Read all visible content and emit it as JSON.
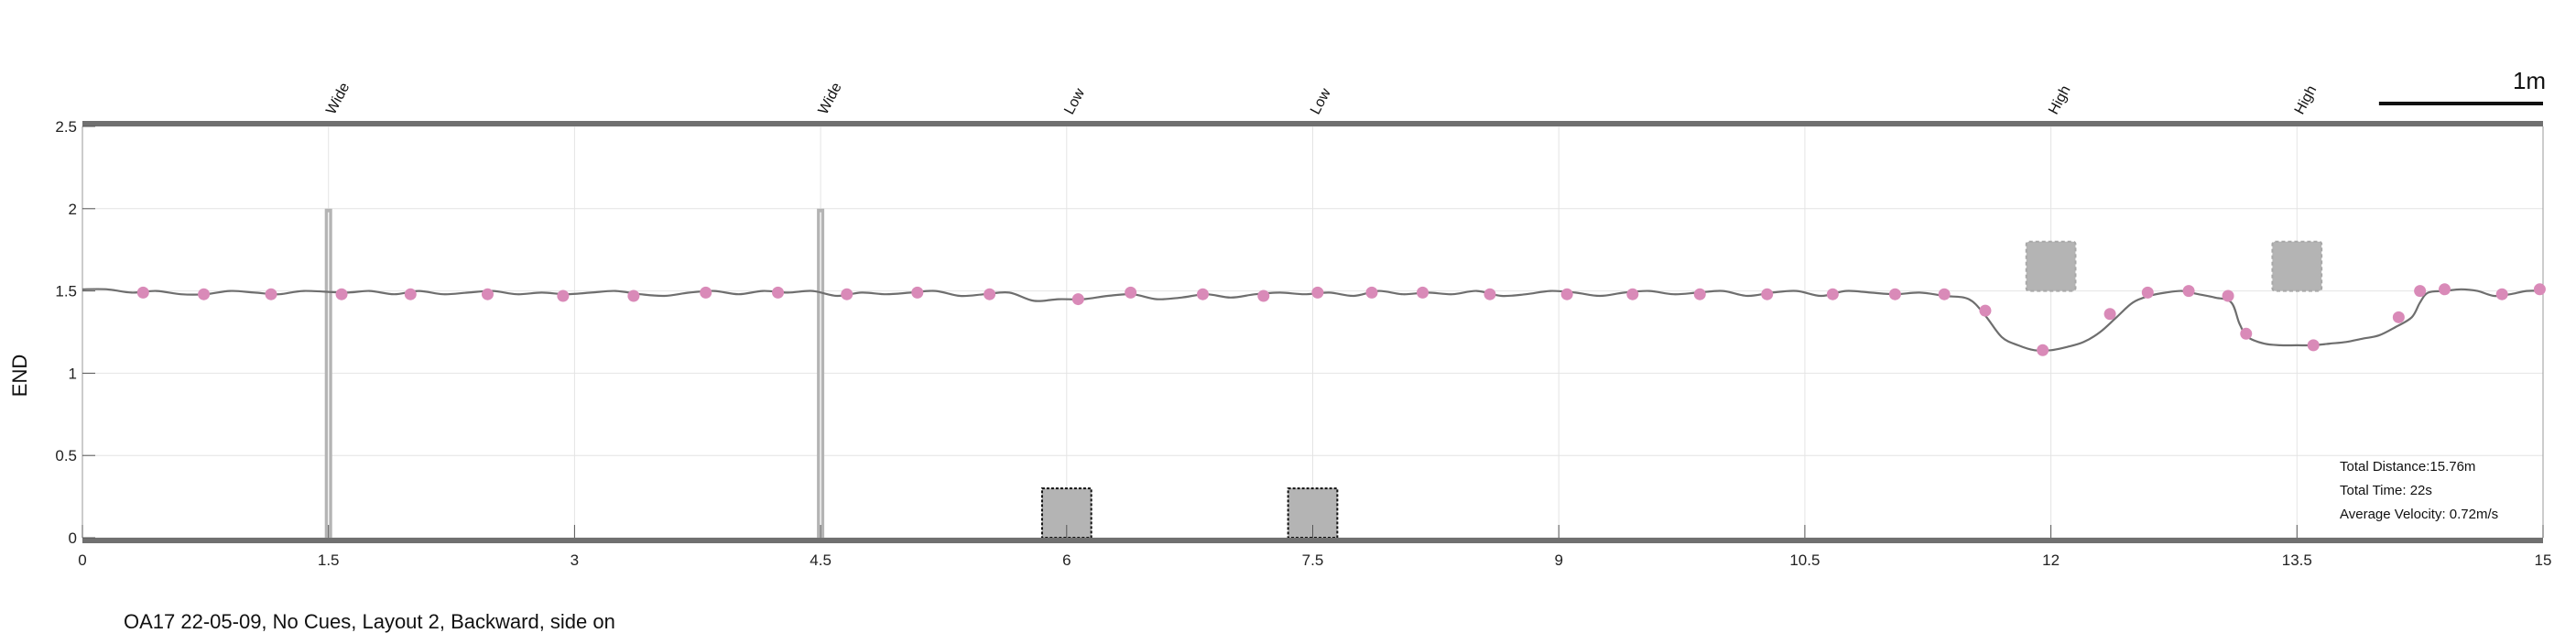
{
  "chart_data": {
    "type": "line",
    "ylabel": "END",
    "xlim": [
      0,
      15
    ],
    "ylim": [
      0,
      2.5
    ],
    "x_ticks": [
      "0",
      "1.5",
      "3",
      "4.5",
      "6",
      "7.5",
      "9",
      "10.5",
      "12",
      "13.5",
      "15"
    ],
    "x_tick_values": [
      0,
      1.5,
      3,
      4.5,
      6,
      7.5,
      9,
      10.5,
      12,
      13.5,
      15
    ],
    "y_ticks": [
      "0",
      "0.5",
      "1",
      "1.5",
      "2",
      "2.5"
    ],
    "y_tick_values": [
      0,
      0.5,
      1,
      1.5,
      2,
      2.5
    ],
    "grid": true,
    "scale_bar": {
      "label": "1m",
      "length": 1
    },
    "obstacles": [
      {
        "label": "Wide",
        "type": "post",
        "x": 1.5,
        "y_from": 0,
        "y_to": 2
      },
      {
        "label": "Wide",
        "type": "post",
        "x": 4.5,
        "y_from": 0,
        "y_to": 2
      },
      {
        "label": "Low",
        "type": "box",
        "x_from": 5.85,
        "x_to": 6.15,
        "y_from": 0,
        "y_to": 0.3
      },
      {
        "label": "Low",
        "type": "box",
        "x_from": 7.35,
        "x_to": 7.65,
        "y_from": 0,
        "y_to": 0.3
      },
      {
        "label": "High",
        "type": "block",
        "x_from": 11.85,
        "x_to": 12.15,
        "y_from": 1.5,
        "y_to": 1.8
      },
      {
        "label": "High",
        "type": "block",
        "x_from": 13.35,
        "x_to": 13.65,
        "y_from": 1.5,
        "y_to": 1.8
      }
    ],
    "series": [
      {
        "name": "trajectory",
        "x": [
          0,
          0.15,
          0.3,
          0.45,
          0.6,
          0.75,
          0.9,
          1.05,
          1.2,
          1.35,
          1.6,
          1.75,
          1.9,
          2.05,
          2.2,
          2.35,
          2.5,
          2.65,
          2.8,
          2.95,
          3.1,
          3.25,
          3.4,
          3.55,
          3.7,
          3.85,
          4.0,
          4.15,
          4.3,
          4.45,
          4.6,
          4.75,
          4.9,
          5.05,
          5.2,
          5.35,
          5.5,
          5.65,
          5.8,
          5.95,
          6.1,
          6.25,
          6.4,
          6.55,
          6.7,
          6.85,
          7.0,
          7.15,
          7.3,
          7.45,
          7.6,
          7.75,
          7.9,
          8.05,
          8.2,
          8.35,
          8.5,
          8.65,
          8.8,
          8.95,
          9.1,
          9.25,
          9.4,
          9.55,
          9.7,
          9.85,
          10.0,
          10.15,
          10.3,
          10.45,
          10.6,
          10.75,
          10.9,
          11.05,
          11.2,
          11.35,
          11.5,
          11.6,
          11.7,
          11.8,
          11.9,
          12.0,
          12.1,
          12.2,
          12.3,
          12.4,
          12.5,
          12.6,
          12.7,
          12.8,
          12.9,
          13.0,
          13.1,
          13.15,
          13.2,
          13.3,
          13.4,
          13.5,
          13.6,
          13.7,
          13.8,
          13.9,
          14.0,
          14.1,
          14.2,
          14.25,
          14.3,
          14.4,
          14.5,
          14.6,
          14.7,
          14.8,
          14.9,
          15.0
        ],
        "y": [
          1.51,
          1.51,
          1.49,
          1.5,
          1.48,
          1.48,
          1.5,
          1.49,
          1.48,
          1.5,
          1.49,
          1.5,
          1.48,
          1.5,
          1.48,
          1.49,
          1.5,
          1.48,
          1.49,
          1.48,
          1.49,
          1.5,
          1.48,
          1.47,
          1.49,
          1.5,
          1.48,
          1.5,
          1.49,
          1.5,
          1.47,
          1.49,
          1.48,
          1.49,
          1.5,
          1.47,
          1.48,
          1.49,
          1.44,
          1.45,
          1.45,
          1.47,
          1.48,
          1.45,
          1.46,
          1.48,
          1.46,
          1.48,
          1.49,
          1.48,
          1.49,
          1.47,
          1.5,
          1.48,
          1.49,
          1.48,
          1.5,
          1.47,
          1.48,
          1.5,
          1.49,
          1.47,
          1.49,
          1.5,
          1.48,
          1.49,
          1.5,
          1.47,
          1.49,
          1.5,
          1.47,
          1.5,
          1.49,
          1.48,
          1.49,
          1.47,
          1.45,
          1.35,
          1.22,
          1.17,
          1.14,
          1.14,
          1.16,
          1.19,
          1.25,
          1.34,
          1.43,
          1.47,
          1.49,
          1.5,
          1.48,
          1.46,
          1.43,
          1.3,
          1.22,
          1.18,
          1.17,
          1.17,
          1.17,
          1.18,
          1.19,
          1.21,
          1.23,
          1.28,
          1.34,
          1.43,
          1.49,
          1.5,
          1.51,
          1.5,
          1.47,
          1.48,
          1.5,
          1.5
        ],
        "marker_x": [
          0.37,
          0.74,
          1.15,
          1.58,
          2.0,
          2.47,
          2.93,
          3.36,
          3.8,
          4.24,
          4.66,
          5.09,
          5.53,
          6.07,
          6.39,
          6.83,
          7.2,
          7.53,
          7.86,
          8.17,
          8.58,
          9.05,
          9.45,
          9.86,
          10.27,
          10.67,
          11.05,
          11.35,
          11.6,
          11.95,
          12.36,
          12.59,
          12.84,
          13.08,
          13.19,
          13.6,
          14.12,
          14.25,
          14.4,
          14.75,
          14.98
        ],
        "marker_y": [
          1.49,
          1.48,
          1.48,
          1.48,
          1.48,
          1.48,
          1.47,
          1.47,
          1.49,
          1.49,
          1.48,
          1.49,
          1.48,
          1.45,
          1.49,
          1.48,
          1.47,
          1.49,
          1.49,
          1.49,
          1.48,
          1.48,
          1.48,
          1.48,
          1.48,
          1.48,
          1.48,
          1.48,
          1.38,
          1.14,
          1.36,
          1.49,
          1.5,
          1.47,
          1.24,
          1.17,
          1.34,
          1.5,
          1.51,
          1.48,
          1.51
        ]
      }
    ],
    "annotations": {
      "total_distance": "Total Distance:15.76m",
      "total_time": "Total Time: 22s",
      "average_velocity": "Average Velocity: 0.72m/s"
    },
    "caption": "OA17 22-05-09, No Cues, Layout 2, Backward, side on",
    "colors": {
      "trajectory": "#6e6e6e",
      "markers": "#d98ab8",
      "obstacle": "#b4b4b4",
      "axis": "#707070",
      "grid": "#e4e4e4"
    }
  }
}
